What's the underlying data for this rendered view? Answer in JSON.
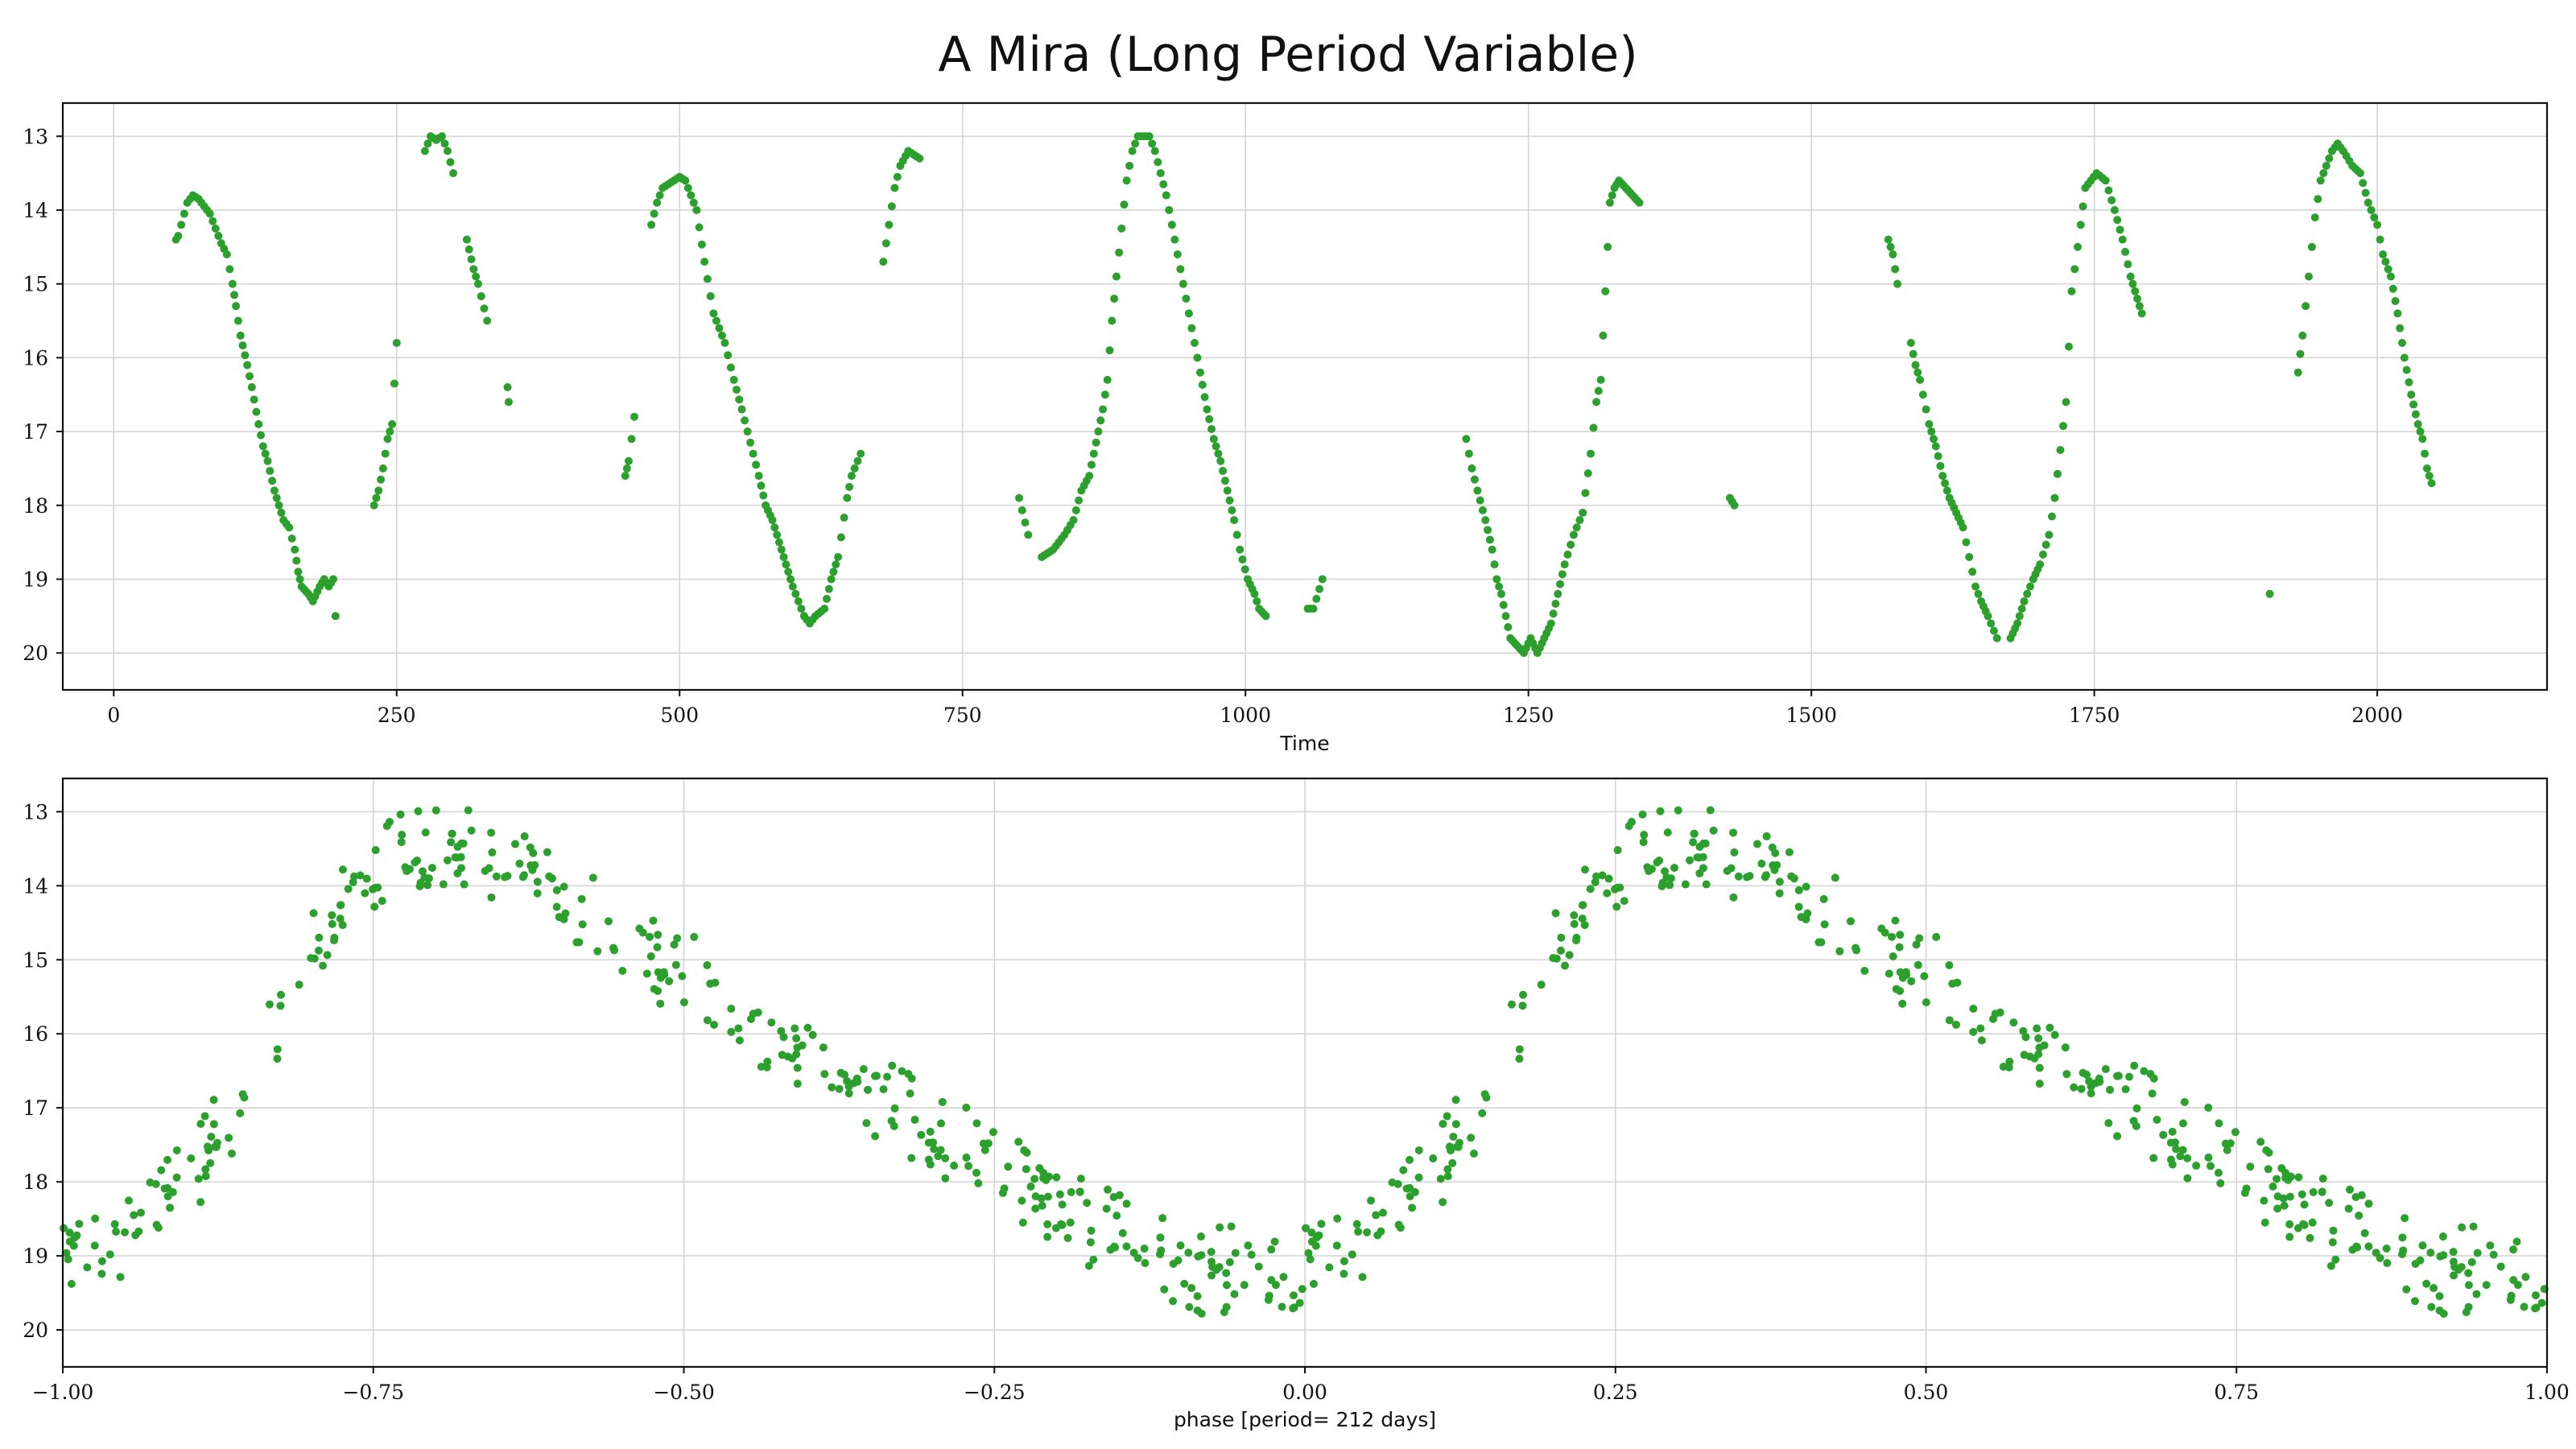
{
  "colors": {
    "points": "#2ca02c",
    "grid": "#d4d4d4",
    "axis": "#111111"
  },
  "chart_data": [
    {
      "type": "scatter",
      "title": "A Mira (Long Period Variable)",
      "xlabel": "Time",
      "ylabel": "",
      "xlim": [
        -45,
        2150
      ],
      "ylim": [
        20.5,
        12.55
      ],
      "y_inverted": true,
      "grid": true,
      "xticks": [
        0,
        250,
        500,
        750,
        1000,
        1250,
        1500,
        1750,
        2000
      ],
      "xtick_labels": [
        "0",
        "250",
        "500",
        "750",
        "1000",
        "1250",
        "1500",
        "1750",
        "2000"
      ],
      "yticks": [
        13,
        14,
        15,
        16,
        17,
        18,
        19,
        20
      ],
      "ytick_labels": [
        "13",
        "14",
        "15",
        "16",
        "17",
        "18",
        "19",
        "20"
      ],
      "points_sample": [
        [
          55,
          14.4
        ],
        [
          57,
          14.35
        ],
        [
          65,
          13.9
        ],
        [
          70,
          13.8
        ],
        [
          75,
          13.85
        ],
        [
          80,
          13.95
        ],
        [
          85,
          14.05
        ],
        [
          90,
          14.25
        ],
        [
          95,
          14.45
        ],
        [
          100,
          14.6
        ],
        [
          105,
          15.0
        ],
        [
          108,
          15.3
        ],
        [
          112,
          15.7
        ],
        [
          118,
          16.1
        ],
        [
          122,
          16.4
        ],
        [
          128,
          16.9
        ],
        [
          132,
          17.2
        ],
        [
          136,
          17.4
        ],
        [
          142,
          17.8
        ],
        [
          146,
          18.0
        ],
        [
          150,
          18.2
        ],
        [
          155,
          18.3
        ],
        [
          160,
          18.6
        ],
        [
          163,
          18.9
        ],
        [
          166,
          19.1
        ],
        [
          172,
          19.2
        ],
        [
          176,
          19.3
        ],
        [
          182,
          19.1
        ],
        [
          186,
          19.0
        ],
        [
          190,
          19.1
        ],
        [
          194,
          19.0
        ],
        [
          196,
          19.5
        ],
        [
          230,
          18.0
        ],
        [
          234,
          17.8
        ],
        [
          238,
          17.5
        ],
        [
          242,
          17.1
        ],
        [
          246,
          16.9
        ],
        [
          250,
          15.8
        ],
        [
          275,
          13.2
        ],
        [
          280,
          13.0
        ],
        [
          285,
          13.05
        ],
        [
          290,
          13.0
        ],
        [
          295,
          13.2
        ],
        [
          300,
          13.5
        ],
        [
          312,
          14.4
        ],
        [
          318,
          14.8
        ],
        [
          322,
          15.0
        ],
        [
          330,
          15.5
        ],
        [
          348,
          16.4
        ],
        [
          349,
          16.6
        ],
        [
          452,
          17.6
        ],
        [
          455,
          17.4
        ],
        [
          460,
          16.8
        ],
        [
          475,
          14.2
        ],
        [
          480,
          13.9
        ],
        [
          485,
          13.7
        ],
        [
          490,
          13.65
        ],
        [
          495,
          13.6
        ],
        [
          500,
          13.55
        ],
        [
          505,
          13.6
        ],
        [
          510,
          13.8
        ],
        [
          515,
          14.0
        ],
        [
          522,
          14.7
        ],
        [
          530,
          15.4
        ],
        [
          540,
          15.8
        ],
        [
          548,
          16.3
        ],
        [
          555,
          16.7
        ],
        [
          560,
          17.0
        ],
        [
          565,
          17.3
        ],
        [
          570,
          17.6
        ],
        [
          576,
          18.0
        ],
        [
          582,
          18.2
        ],
        [
          588,
          18.5
        ],
        [
          592,
          18.7
        ],
        [
          596,
          18.9
        ],
        [
          600,
          19.1
        ],
        [
          605,
          19.3
        ],
        [
          610,
          19.5
        ],
        [
          615,
          19.6
        ],
        [
          620,
          19.5
        ],
        [
          628,
          19.4
        ],
        [
          634,
          19.0
        ],
        [
          640,
          18.7
        ],
        [
          648,
          17.9
        ],
        [
          652,
          17.6
        ],
        [
          660,
          17.3
        ],
        [
          680,
          14.7
        ],
        [
          685,
          14.2
        ],
        [
          690,
          13.7
        ],
        [
          695,
          13.4
        ],
        [
          702,
          13.2
        ],
        [
          712,
          13.3
        ],
        [
          800,
          17.9
        ],
        [
          808,
          18.4
        ],
        [
          820,
          18.7
        ],
        [
          830,
          18.6
        ],
        [
          840,
          18.4
        ],
        [
          848,
          18.2
        ],
        [
          855,
          17.8
        ],
        [
          862,
          17.6
        ],
        [
          866,
          17.3
        ],
        [
          870,
          17.0
        ],
        [
          874,
          16.7
        ],
        [
          878,
          16.3
        ],
        [
          882,
          15.5
        ],
        [
          886,
          14.9
        ],
        [
          895,
          13.6
        ],
        [
          900,
          13.2
        ],
        [
          905,
          13.0
        ],
        [
          915,
          13.0
        ],
        [
          920,
          13.2
        ],
        [
          925,
          13.5
        ],
        [
          930,
          13.8
        ],
        [
          935,
          14.2
        ],
        [
          940,
          14.6
        ],
        [
          950,
          15.4
        ],
        [
          955,
          15.8
        ],
        [
          960,
          16.2
        ],
        [
          966,
          16.7
        ],
        [
          972,
          17.1
        ],
        [
          978,
          17.4
        ],
        [
          984,
          17.8
        ],
        [
          990,
          18.2
        ],
        [
          995,
          18.6
        ],
        [
          1002,
          19.0
        ],
        [
          1008,
          19.2
        ],
        [
          1012,
          19.4
        ],
        [
          1018,
          19.5
        ],
        [
          1055,
          19.4
        ],
        [
          1060,
          19.4
        ],
        [
          1068,
          19.0
        ],
        [
          1195,
          17.1
        ],
        [
          1200,
          17.5
        ],
        [
          1205,
          17.8
        ],
        [
          1212,
          18.2
        ],
        [
          1218,
          18.6
        ],
        [
          1222,
          19.0
        ],
        [
          1226,
          19.2
        ],
        [
          1230,
          19.5
        ],
        [
          1234,
          19.8
        ],
        [
          1240,
          19.9
        ],
        [
          1246,
          20.0
        ],
        [
          1252,
          19.8
        ],
        [
          1258,
          20.0
        ],
        [
          1264,
          19.8
        ],
        [
          1270,
          19.6
        ],
        [
          1276,
          19.2
        ],
        [
          1282,
          18.8
        ],
        [
          1290,
          18.4
        ],
        [
          1298,
          18.1
        ],
        [
          1305,
          17.3
        ],
        [
          1310,
          16.6
        ],
        [
          1314,
          16.3
        ],
        [
          1318,
          15.1
        ],
        [
          1322,
          13.9
        ],
        [
          1326,
          13.7
        ],
        [
          1330,
          13.6
        ],
        [
          1336,
          13.7
        ],
        [
          1342,
          13.8
        ],
        [
          1348,
          13.9
        ],
        [
          1428,
          17.9
        ],
        [
          1432,
          18.0
        ],
        [
          1568,
          14.4
        ],
        [
          1572,
          14.6
        ],
        [
          1576,
          15.0
        ],
        [
          1588,
          15.8
        ],
        [
          1592,
          16.1
        ],
        [
          1596,
          16.3
        ],
        [
          1604,
          16.9
        ],
        [
          1610,
          17.2
        ],
        [
          1616,
          17.6
        ],
        [
          1622,
          17.9
        ],
        [
          1628,
          18.1
        ],
        [
          1634,
          18.3
        ],
        [
          1645,
          19.1
        ],
        [
          1650,
          19.3
        ],
        [
          1656,
          19.5
        ],
        [
          1664,
          19.8
        ],
        [
          1676,
          19.8
        ],
        [
          1682,
          19.6
        ],
        [
          1688,
          19.3
        ],
        [
          1696,
          19.0
        ],
        [
          1702,
          18.8
        ],
        [
          1710,
          18.4
        ],
        [
          1715,
          17.9
        ],
        [
          1725,
          16.6
        ],
        [
          1730,
          15.1
        ],
        [
          1738,
          14.2
        ],
        [
          1742,
          13.7
        ],
        [
          1752,
          13.5
        ],
        [
          1760,
          13.6
        ],
        [
          1768,
          14.0
        ],
        [
          1775,
          14.4
        ],
        [
          1782,
          14.9
        ],
        [
          1788,
          15.2
        ],
        [
          1792,
          15.4
        ],
        [
          1905,
          19.2
        ],
        [
          1930,
          16.2
        ],
        [
          1934,
          15.7
        ],
        [
          1945,
          14.1
        ],
        [
          1950,
          13.6
        ],
        [
          1955,
          13.4
        ],
        [
          1960,
          13.2
        ],
        [
          1965,
          13.1
        ],
        [
          1970,
          13.2
        ],
        [
          1978,
          13.4
        ],
        [
          1985,
          13.5
        ],
        [
          1992,
          13.9
        ],
        [
          2000,
          14.2
        ],
        [
          2005,
          14.6
        ],
        [
          2012,
          14.9
        ],
        [
          2018,
          15.4
        ],
        [
          2024,
          16.0
        ],
        [
          2030,
          16.5
        ],
        [
          2036,
          16.9
        ],
        [
          2040,
          17.1
        ],
        [
          2044,
          17.5
        ],
        [
          2048,
          17.7
        ]
      ]
    },
    {
      "type": "scatter",
      "title": "",
      "xlabel": "phase [period= 212 days]",
      "ylabel": "",
      "xlim": [
        -1.0,
        1.0
      ],
      "ylim": [
        20.5,
        12.55
      ],
      "y_inverted": true,
      "grid": true,
      "period_days": 212,
      "xticks": [
        -1.0,
        -0.75,
        -0.5,
        -0.25,
        0.0,
        0.25,
        0.5,
        0.75,
        1.0
      ],
      "xtick_labels": [
        "−1.00",
        "−0.75",
        "−0.50",
        "−0.25",
        "0.00",
        "0.25",
        "0.50",
        "0.75",
        "1.00"
      ],
      "yticks": [
        13,
        14,
        15,
        16,
        17,
        18,
        19,
        20
      ],
      "ytick_labels": [
        "13",
        "14",
        "15",
        "16",
        "17",
        "18",
        "19",
        "20"
      ],
      "curve_anchors": [
        [
          0.0,
          19.2
        ],
        [
          0.02,
          19.0
        ],
        [
          0.06,
          18.6
        ],
        [
          0.1,
          18.0
        ],
        [
          0.15,
          16.7
        ],
        [
          0.2,
          14.9
        ],
        [
          0.25,
          13.8
        ],
        [
          0.3,
          13.4
        ],
        [
          0.35,
          13.6
        ],
        [
          0.4,
          14.2
        ],
        [
          0.5,
          15.2
        ],
        [
          0.6,
          16.3
        ],
        [
          0.7,
          17.3
        ],
        [
          0.8,
          18.3
        ],
        [
          0.9,
          19.2
        ],
        [
          1.0,
          19.2
        ]
      ],
      "point_count_per_cycle": 380
    }
  ]
}
